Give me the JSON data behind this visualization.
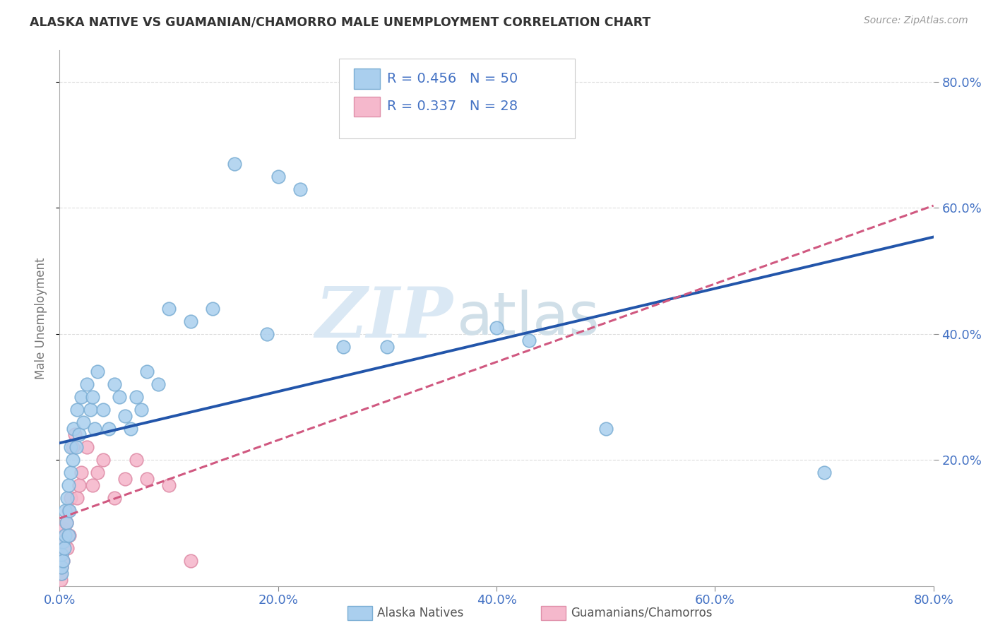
{
  "title": "ALASKA NATIVE VS GUAMANIAN/CHAMORRO MALE UNEMPLOYMENT CORRELATION CHART",
  "source": "Source: ZipAtlas.com",
  "ylabel": "Male Unemployment",
  "xlim": [
    0.0,
    0.8
  ],
  "ylim": [
    0.0,
    0.85
  ],
  "xticks": [
    0.0,
    0.2,
    0.4,
    0.6,
    0.8
  ],
  "yticks": [
    0.2,
    0.4,
    0.6,
    0.8
  ],
  "xtick_labels": [
    "0.0%",
    "20.0%",
    "40.0%",
    "60.0%",
    "80.0%"
  ],
  "ytick_labels": [
    "20.0%",
    "40.0%",
    "60.0%",
    "80.0%"
  ],
  "blue_R": 0.456,
  "blue_N": 50,
  "pink_R": 0.337,
  "pink_N": 28,
  "blue_color": "#AACFEE",
  "blue_edge_color": "#7BAED4",
  "blue_line_color": "#2255AA",
  "pink_color": "#F5B8CC",
  "pink_edge_color": "#E090AA",
  "pink_line_color": "#D05880",
  "legend_label_blue": "Alaska Natives",
  "legend_label_pink": "Guamanians/Chamorros",
  "blue_x": [
    0.002,
    0.002,
    0.002,
    0.003,
    0.003,
    0.004,
    0.005,
    0.005,
    0.006,
    0.007,
    0.008,
    0.008,
    0.009,
    0.01,
    0.01,
    0.012,
    0.013,
    0.015,
    0.016,
    0.018,
    0.02,
    0.022,
    0.025,
    0.028,
    0.03,
    0.032,
    0.035,
    0.04,
    0.045,
    0.05,
    0.055,
    0.06,
    0.065,
    0.07,
    0.075,
    0.08,
    0.09,
    0.1,
    0.12,
    0.14,
    0.16,
    0.19,
    0.2,
    0.22,
    0.26,
    0.3,
    0.4,
    0.43,
    0.5,
    0.7
  ],
  "blue_y": [
    0.02,
    0.03,
    0.05,
    0.04,
    0.07,
    0.06,
    0.08,
    0.12,
    0.1,
    0.14,
    0.08,
    0.16,
    0.12,
    0.18,
    0.22,
    0.2,
    0.25,
    0.22,
    0.28,
    0.24,
    0.3,
    0.26,
    0.32,
    0.28,
    0.3,
    0.25,
    0.34,
    0.28,
    0.25,
    0.32,
    0.3,
    0.27,
    0.25,
    0.3,
    0.28,
    0.34,
    0.32,
    0.44,
    0.42,
    0.44,
    0.67,
    0.4,
    0.65,
    0.63,
    0.38,
    0.38,
    0.41,
    0.39,
    0.25,
    0.18
  ],
  "pink_x": [
    0.001,
    0.001,
    0.002,
    0.002,
    0.003,
    0.004,
    0.004,
    0.005,
    0.006,
    0.007,
    0.008,
    0.009,
    0.01,
    0.012,
    0.014,
    0.016,
    0.018,
    0.02,
    0.025,
    0.03,
    0.035,
    0.04,
    0.05,
    0.06,
    0.07,
    0.08,
    0.1,
    0.12
  ],
  "pink_y": [
    0.01,
    0.02,
    0.03,
    0.05,
    0.04,
    0.07,
    0.09,
    0.08,
    0.1,
    0.06,
    0.12,
    0.08,
    0.14,
    0.22,
    0.24,
    0.14,
    0.16,
    0.18,
    0.22,
    0.16,
    0.18,
    0.2,
    0.14,
    0.17,
    0.2,
    0.17,
    0.16,
    0.04
  ],
  "background_color": "#FFFFFF",
  "grid_color": "#DDDDDD",
  "watermark_zip_color": "#DAE8F4",
  "watermark_atlas_color": "#D0DFE8"
}
